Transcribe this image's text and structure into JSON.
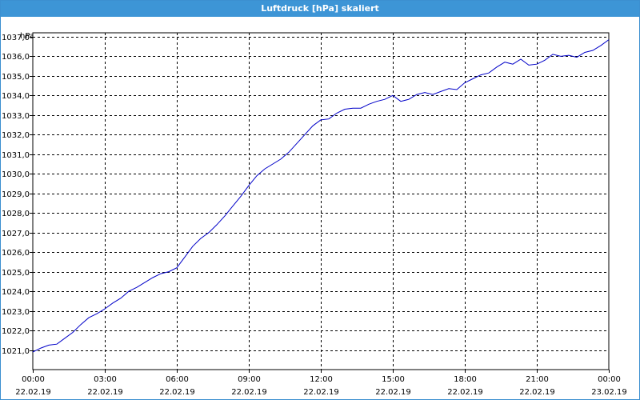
{
  "window": {
    "title": "Luftdruck [hPa] skaliert"
  },
  "colors": {
    "title_bar": "#3d95d6",
    "series_line": "#0000c8",
    "grid": "#000000",
    "plot_background": "#ffffff"
  },
  "chart_data": {
    "type": "line",
    "title": "Luftdruck [hPa] skaliert",
    "ylabel": "hPa",
    "xlabel": "",
    "ylim": [
      1020.0,
      1037.2
    ],
    "xlim": [
      "22.02.19 00:00",
      "23.02.19 00:00"
    ],
    "grid": true,
    "y_ticks": [
      "1021,0",
      "1022,0",
      "1023,0",
      "1024,0",
      "1025,0",
      "1026,0",
      "1027,0",
      "1028,0",
      "1029,0",
      "1030,0",
      "1031,0",
      "1032,0",
      "1033,0",
      "1034,0",
      "1035,0",
      "1036,0",
      "1037,0"
    ],
    "x_ticks": [
      {
        "time": "00:00",
        "date": "22.02.19"
      },
      {
        "time": "03:00",
        "date": "22.02.19"
      },
      {
        "time": "06:00",
        "date": "22.02.19"
      },
      {
        "time": "09:00",
        "date": "22.02.19"
      },
      {
        "time": "12:00",
        "date": "22.02.19"
      },
      {
        "time": "15:00",
        "date": "22.02.19"
      },
      {
        "time": "18:00",
        "date": "22.02.19"
      },
      {
        "time": "21:00",
        "date": "22.02.19"
      },
      {
        "time": "00:00",
        "date": "23.02.19"
      }
    ],
    "series": [
      {
        "x": [
          "22.02.19 00:00",
          "22.02.19 00:20",
          "22.02.19 00:40",
          "22.02.19 01:00",
          "22.02.19 01:20",
          "22.02.19 01:40",
          "22.02.19 02:00",
          "22.02.19 02:20",
          "22.02.19 02:40",
          "22.02.19 03:00",
          "22.02.19 03:20",
          "22.02.19 03:40",
          "22.02.19 04:00",
          "22.02.19 04:20",
          "22.02.19 04:40",
          "22.02.19 05:00",
          "22.02.19 05:20",
          "22.02.19 05:40",
          "22.02.19 06:00",
          "22.02.19 06:20",
          "22.02.19 06:40",
          "22.02.19 07:00",
          "22.02.19 07:20",
          "22.02.19 07:40",
          "22.02.19 08:00",
          "22.02.19 08:20",
          "22.02.19 08:40",
          "22.02.19 09:00",
          "22.02.19 09:20",
          "22.02.19 09:40",
          "22.02.19 10:00",
          "22.02.19 10:20",
          "22.02.19 10:40",
          "22.02.19 11:00",
          "22.02.19 11:20",
          "22.02.19 11:40",
          "22.02.19 12:00",
          "22.02.19 12:20",
          "22.02.19 12:40",
          "22.02.19 13:00",
          "22.02.19 13:20",
          "22.02.19 13:40",
          "22.02.19 14:00",
          "22.02.19 14:20",
          "22.02.19 14:40",
          "22.02.19 15:00",
          "22.02.19 15:20",
          "22.02.19 15:40",
          "22.02.19 16:00",
          "22.02.19 16:20",
          "22.02.19 16:40",
          "22.02.19 17:00",
          "22.02.19 17:20",
          "22.02.19 17:40",
          "22.02.19 18:00",
          "22.02.19 18:20",
          "22.02.19 18:40",
          "22.02.19 19:00",
          "22.02.19 19:20",
          "22.02.19 19:40",
          "22.02.19 20:00",
          "22.02.19 20:20",
          "22.02.19 20:40",
          "22.02.19 21:00",
          "22.02.19 21:20",
          "22.02.19 21:40",
          "22.02.19 22:00",
          "22.02.19 22:20",
          "22.02.19 22:40",
          "22.02.19 23:00",
          "22.02.19 23:20",
          "22.02.19 23:40",
          "23.02.19 00:00"
        ],
        "values": [
          1020.9,
          1021.1,
          1021.25,
          1021.3,
          1021.6,
          1021.9,
          1022.3,
          1022.65,
          1022.85,
          1023.1,
          1023.4,
          1023.65,
          1024.0,
          1024.2,
          1024.45,
          1024.7,
          1024.9,
          1025.0,
          1025.2,
          1025.75,
          1026.3,
          1026.7,
          1027.0,
          1027.4,
          1027.85,
          1028.35,
          1028.85,
          1029.4,
          1029.9,
          1030.25,
          1030.5,
          1030.75,
          1031.1,
          1031.55,
          1032.0,
          1032.45,
          1032.75,
          1032.8,
          1033.1,
          1033.3,
          1033.35,
          1033.35,
          1033.55,
          1033.7,
          1033.8,
          1034.0,
          1033.7,
          1033.8,
          1034.05,
          1034.15,
          1034.05,
          1034.2,
          1034.35,
          1034.3,
          1034.65,
          1034.85,
          1035.05,
          1035.15,
          1035.45,
          1035.7,
          1035.6,
          1035.85,
          1035.55,
          1035.6,
          1035.8,
          1036.1,
          1036.0,
          1036.05,
          1035.95,
          1036.2,
          1036.3,
          1036.55,
          1036.85
        ]
      }
    ]
  }
}
